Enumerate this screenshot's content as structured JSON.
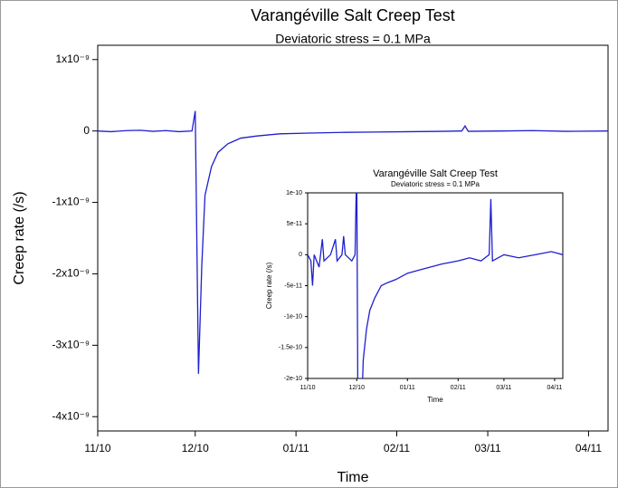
{
  "chart_data": [
    {
      "type": "line",
      "title": "Varangéville Salt Creep Test",
      "subtitle": "Deviatoric stress = 0.1 MPa",
      "x_label": "Time",
      "y_label": "Creep rate (/s)",
      "xlim": [
        "2010-11-01",
        "2011-04-07"
      ],
      "xticks": [
        {
          "value": "2010-11",
          "label": "11/10"
        },
        {
          "value": "2010-12",
          "label": "12/10"
        },
        {
          "value": "2011-01",
          "label": "01/11"
        },
        {
          "value": "2011-02",
          "label": "02/11"
        },
        {
          "value": "2011-03",
          "label": "03/11"
        },
        {
          "value": "2011-04",
          "label": "04/11"
        }
      ],
      "ylim": [
        -4.2e-09,
        1.2e-09
      ],
      "yticks": [
        {
          "value": 1e-09,
          "label": "1x10⁻⁹"
        },
        0,
        {
          "value": -1e-09,
          "label": "-1x10⁻⁹"
        },
        {
          "value": -2e-09,
          "label": "-2x10⁻⁹"
        },
        {
          "value": -3e-09,
          "label": "-3x10⁻⁹"
        },
        {
          "value": -4e-09,
          "label": "-4x10⁻⁹"
        }
      ],
      "x": [
        "2010-11-01",
        "2010-11-05",
        "2010-11-10",
        "2010-11-14",
        "2010-11-18",
        "2010-11-22",
        "2010-11-26",
        "2010-11-30",
        "2010-12-01",
        "2010-12-02",
        "2010-12-03",
        "2010-12-04",
        "2010-12-06",
        "2010-12-08",
        "2010-12-11",
        "2010-12-15",
        "2010-12-20",
        "2010-12-27",
        "2011-01-05",
        "2011-01-15",
        "2011-01-25",
        "2011-02-05",
        "2011-02-15",
        "2011-02-21",
        "2011-02-22",
        "2011-02-23",
        "2011-03-05",
        "2011-03-15",
        "2011-03-25",
        "2011-04-07"
      ],
      "series": [
        {
          "name": "Creep rate",
          "color": "#1f1fd0",
          "values": [
            0,
            -1e-11,
            5e-12,
            1e-11,
            -5e-12,
            5e-12,
            -1e-11,
            0,
            2.8e-10,
            -3.4e-09,
            -1.9e-09,
            -9e-10,
            -5e-10,
            -3e-10,
            -1.8e-10,
            -1e-10,
            -7e-11,
            -4e-11,
            -3e-11,
            -2e-11,
            -1.5e-11,
            -1e-11,
            -5e-12,
            0,
            7e-11,
            -5e-12,
            0,
            5e-12,
            -5e-12,
            0
          ]
        }
      ]
    },
    {
      "type": "line",
      "title": "Varangéville Salt Creep Test",
      "subtitle": "Deviatoric stress = 0.1 MPa",
      "x_label": "Time",
      "y_label": "Creep rate (/s)",
      "xlim": [
        "2010-11-01",
        "2011-04-06"
      ],
      "xticks": [
        {
          "value": "2010-11",
          "label": "11/10"
        },
        {
          "value": "2010-12",
          "label": "12/10"
        },
        {
          "value": "2011-01",
          "label": "01/11"
        },
        {
          "value": "2011-02",
          "label": "02/11"
        },
        {
          "value": "2011-03",
          "label": "03/11"
        },
        {
          "value": "2011-04",
          "label": "04/11"
        }
      ],
      "ylim": [
        -2e-10,
        1e-10
      ],
      "yticks": [
        {
          "value": 1e-10,
          "label": "1e-10"
        },
        {
          "value": 5e-11,
          "label": "5e-11"
        },
        0,
        {
          "value": -5e-11,
          "label": "-5e-11"
        },
        {
          "value": -1e-10,
          "label": "-1e-10"
        },
        {
          "value": -1.5e-10,
          "label": "-1.5e-10"
        },
        {
          "value": -2e-10,
          "label": "-2e-10"
        }
      ],
      "x": [
        "2010-11-01",
        "2010-11-03",
        "2010-11-04",
        "2010-11-05",
        "2010-11-08",
        "2010-11-10",
        "2010-11-11",
        "2010-11-15",
        "2010-11-18",
        "2010-11-19",
        "2010-11-22",
        "2010-11-23",
        "2010-11-24",
        "2010-11-28",
        "2010-11-30",
        "2010-12-01",
        "2010-12-02",
        "2010-12-04",
        "2010-12-05",
        "2010-12-07",
        "2010-12-09",
        "2010-12-12",
        "2010-12-16",
        "2010-12-20",
        "2010-12-25",
        "2011-01-01",
        "2011-01-08",
        "2011-01-15",
        "2011-01-22",
        "2011-02-01",
        "2011-02-08",
        "2011-02-15",
        "2011-02-20",
        "2011-02-21",
        "2011-02-22",
        "2011-03-01",
        "2011-03-10",
        "2011-03-20",
        "2011-03-30",
        "2011-04-06"
      ],
      "series": [
        {
          "name": "Creep rate",
          "color": "#1f1fd0",
          "values": [
            0,
            -1e-11,
            -5e-11,
            0,
            -2e-11,
            2.5e-11,
            -1e-11,
            0,
            2.5e-11,
            -1e-11,
            0,
            3e-11,
            0,
            -1e-11,
            0,
            1.5e-10,
            -4e-10,
            -2.5e-10,
            -1.7e-10,
            -1.2e-10,
            -9e-11,
            -7e-11,
            -5e-11,
            -4.5e-11,
            -4e-11,
            -3e-11,
            -2.5e-11,
            -2e-11,
            -1.5e-11,
            -1e-11,
            -5e-12,
            -1e-11,
            0,
            9e-11,
            -1e-11,
            0,
            -5e-12,
            0,
            5e-12,
            0
          ]
        }
      ]
    }
  ]
}
